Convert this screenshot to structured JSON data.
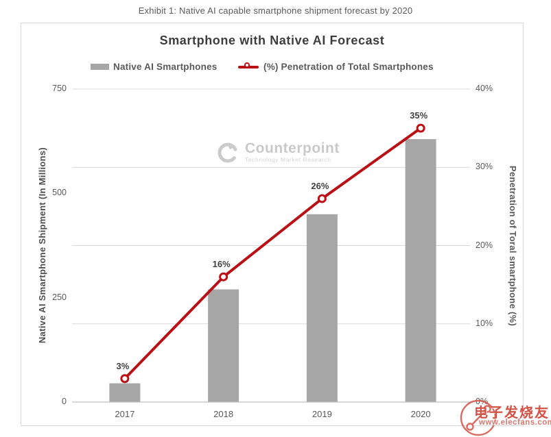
{
  "page": {
    "exhibit_title": "Exhibit 1: Native AI capable smartphone shipment forecast by 2020"
  },
  "chart": {
    "title": "Smartphone with Native AI Forecast",
    "legend": [
      {
        "label": "Native AI Smartphones",
        "type": "bar",
        "color": "#a6a6a6"
      },
      {
        "label": "(%) Penetration of Total Smartphones",
        "type": "line",
        "color": "#b90f15"
      }
    ]
  },
  "chart_data": {
    "type": "bar+line",
    "title": "Smartphone with Native AI Forecast",
    "categories": [
      "2017",
      "2018",
      "2019",
      "2020"
    ],
    "series": [
      {
        "name": "Native AI Smartphones",
        "type": "bar",
        "axis": "left",
        "values": [
          45,
          270,
          450,
          630
        ],
        "color": "#a6a6a6"
      },
      {
        "name": "(%) Penetration of Total Smartphones",
        "type": "line",
        "axis": "right",
        "values": [
          3,
          16,
          26,
          35
        ],
        "point_labels": [
          "3%",
          "16%",
          "26%",
          "35%"
        ],
        "color": "#b90f15",
        "marker": "open-circle"
      }
    ],
    "left_axis": {
      "title": "Native AI Smartphone Shipment (In Millions)",
      "tick_labels": [
        "0",
        "250",
        "500",
        "750"
      ],
      "tick_values": [
        0,
        250,
        500,
        750
      ],
      "range": [
        0,
        750
      ]
    },
    "right_axis": {
      "title": "Penetration of Toral smartphone (%)",
      "tick_labels": [
        "0%",
        "10%",
        "20%",
        "30%",
        "40%"
      ],
      "tick_values": [
        0,
        10,
        20,
        30,
        40
      ],
      "range": [
        0,
        40
      ]
    },
    "grid": true,
    "legend_position": "top"
  },
  "watermark": {
    "brand": "Counterpoint",
    "tagline": "Technology Market Research"
  },
  "footer_watermark": {
    "site_name": "电子发烧友",
    "site_url": "www.elecfans.com"
  }
}
